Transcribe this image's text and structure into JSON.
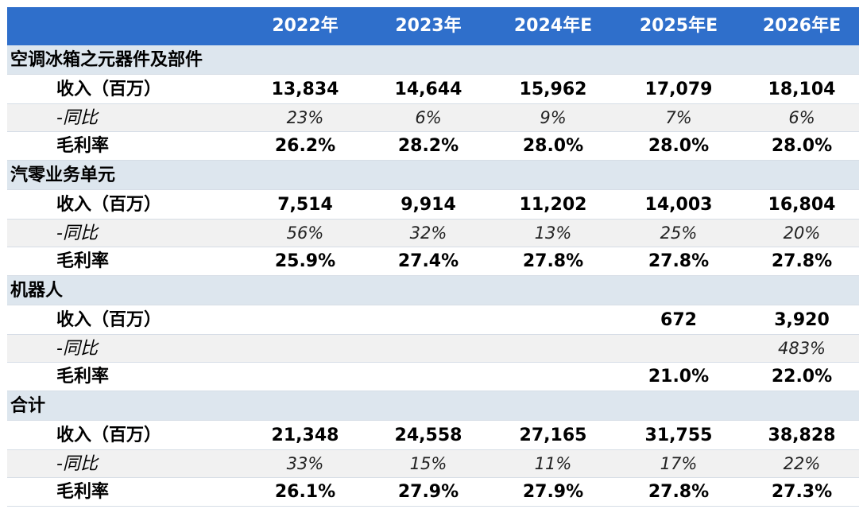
{
  "header": {
    "years": [
      "2022年",
      "2023年",
      "2024年E",
      "2025年E",
      "2026年E"
    ]
  },
  "sections": [
    {
      "name": "空调冰箱之元器件及部件",
      "rows": [
        {
          "label": "收入（百万）",
          "values": [
            "13,834",
            "14,644",
            "15,962",
            "17,079",
            "18,104"
          ]
        },
        {
          "label": "-同比",
          "values": [
            "23%",
            "6%",
            "9%",
            "7%",
            "6%"
          ]
        },
        {
          "label": "毛利率",
          "values": [
            "26.2%",
            "28.2%",
            "28.0%",
            "28.0%",
            "28.0%"
          ]
        }
      ]
    },
    {
      "name": "汽零业务单元",
      "rows": [
        {
          "label": "收入（百万）",
          "values": [
            "7,514",
            "9,914",
            "11,202",
            "14,003",
            "16,804"
          ]
        },
        {
          "label": "-同比",
          "values": [
            "56%",
            "32%",
            "13%",
            "25%",
            "20%"
          ]
        },
        {
          "label": "毛利率",
          "values": [
            "25.9%",
            "27.4%",
            "27.8%",
            "27.8%",
            "27.8%"
          ]
        }
      ]
    },
    {
      "name": "机器人",
      "rows": [
        {
          "label": "收入（百万）",
          "values": [
            "",
            "",
            "",
            "672",
            "3,920"
          ]
        },
        {
          "label": "-同比",
          "values": [
            "",
            "",
            "",
            "",
            "483%"
          ]
        },
        {
          "label": "毛利率",
          "values": [
            "",
            "",
            "",
            "21.0%",
            "22.0%"
          ]
        }
      ]
    },
    {
      "name": "合计",
      "rows": [
        {
          "label": "收入（百万）",
          "values": [
            "21,348",
            "24,558",
            "27,165",
            "31,755",
            "38,828"
          ]
        },
        {
          "label": "-同比",
          "values": [
            "33%",
            "15%",
            "11%",
            "17%",
            "22%"
          ]
        },
        {
          "label": "毛利率",
          "values": [
            "26.1%",
            "27.9%",
            "27.9%",
            "27.8%",
            "27.3%"
          ]
        }
      ]
    }
  ]
}
